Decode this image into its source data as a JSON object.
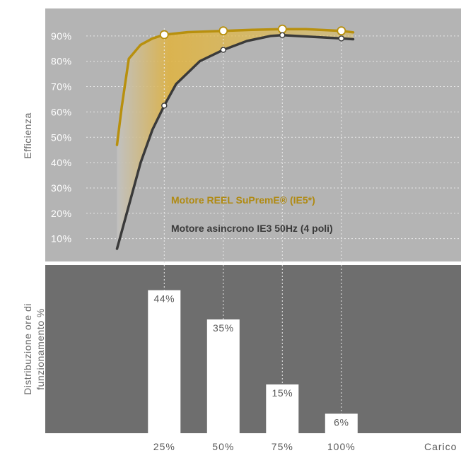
{
  "chart_data": [
    {
      "type": "line",
      "ylabel": "Efficienza",
      "ylim": [
        0,
        100
      ],
      "yticks": [
        10,
        20,
        30,
        40,
        50,
        60,
        70,
        80,
        90
      ],
      "ytick_labels": [
        "10%",
        "20%",
        "30%",
        "40%",
        "50%",
        "60%",
        "70%",
        "80%",
        "90%"
      ],
      "series": [
        {
          "name": "Motore REEL SuPremE®  (IE5*)",
          "color": "#b8900e",
          "x": [
            5,
            7,
            10,
            15,
            20,
            25,
            35,
            50,
            62,
            75,
            85,
            100,
            105
          ],
          "y": [
            47,
            62,
            81,
            86.5,
            89,
            90.5,
            91.5,
            92,
            92.4,
            92.7,
            92.7,
            92,
            91.4
          ],
          "markers_x": [
            25,
            50,
            75,
            100
          ],
          "markers_y": [
            90.5,
            92,
            92.7,
            92
          ]
        },
        {
          "name": "Motore asincrono IE3 50Hz (4 poli)",
          "color": "#3a3a3a",
          "x": [
            5,
            10,
            15,
            20,
            25,
            30,
            40,
            50,
            60,
            70,
            75,
            85,
            100,
            105
          ],
          "y": [
            6,
            23,
            40,
            53,
            62.5,
            71,
            80,
            84.5,
            88,
            90,
            90.3,
            89.8,
            89,
            88.7
          ],
          "markers_x": [
            25,
            50,
            75,
            100
          ],
          "markers_y": [
            62.5,
            84.5,
            90.3,
            89
          ]
        }
      ]
    },
    {
      "type": "bar",
      "ylabel_lines": [
        "Distribuzione ore di",
        "funzionamento %"
      ],
      "xlabel": "Carico",
      "categories": [
        "25%",
        "50%",
        "75%",
        "100%"
      ],
      "x": [
        25,
        50,
        75,
        100
      ],
      "values": [
        44,
        35,
        15,
        6
      ],
      "value_labels": [
        "44%",
        "35%",
        "15%",
        "6%"
      ],
      "ylim": [
        0,
        50
      ]
    }
  ]
}
